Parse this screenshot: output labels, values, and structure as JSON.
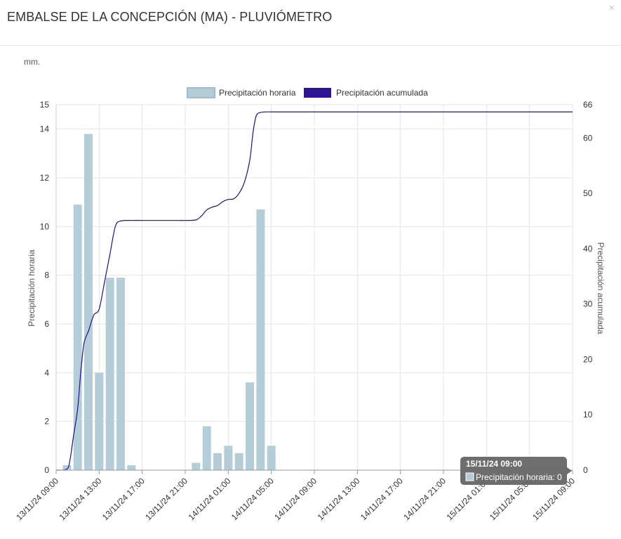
{
  "header": {
    "title": "EMBALSE DE LA CONCEPCIÓN (MA) - PLUVIÓMETRO",
    "close_label": "×"
  },
  "unit_label": "mm.",
  "chart_data": {
    "type": "bar",
    "x_ticks": [
      "13/11/24 09:00",
      "13/11/24 13:00",
      "13/11/24 17:00",
      "13/11/24 21:00",
      "14/11/24 01:00",
      "14/11/24 05:00",
      "14/11/24 09:00",
      "14/11/24 13:00",
      "14/11/24 17:00",
      "14/11/24 21:00",
      "15/11/24 01:00",
      "15/11/24 05:00",
      "15/11/24 09:00"
    ],
    "y_left_ticks": [
      0,
      2,
      4,
      6,
      8,
      10,
      12,
      14,
      15
    ],
    "y_right_ticks": [
      0,
      10,
      20,
      30,
      40,
      50,
      60,
      66
    ],
    "ylim_left": [
      0,
      15
    ],
    "ylim_right": [
      0,
      66
    ],
    "ylabel_left": "Precipitación horaria",
    "ylabel_right": "Precipitación acumulada",
    "grid": true,
    "legend_position": "top-center",
    "series": [
      {
        "name": "Precipitación horaria",
        "type": "bar",
        "axis": "left",
        "color": "#b4cdd9",
        "hours": [
          1,
          2,
          3,
          4,
          5,
          6,
          7,
          8,
          13,
          14,
          15,
          16,
          17,
          18,
          19,
          20,
          21
        ],
        "values": [
          0.2,
          10.9,
          13.8,
          4.0,
          7.9,
          7.9,
          0.2,
          0.0,
          0.3,
          1.8,
          0.7,
          1.0,
          0.7,
          3.6,
          10.7,
          1.0,
          0.0
        ]
      },
      {
        "name": "Precipitación acumulada",
        "type": "line",
        "axis": "right",
        "color": "#1f1187",
        "x_hours": [
          0,
          1,
          1.3,
          1.6,
          2,
          2.3,
          2.6,
          3,
          3.5,
          4,
          4.5,
          5,
          5.5,
          6,
          7,
          8,
          9,
          10,
          11,
          12,
          13,
          13.5,
          14,
          14.5,
          15,
          15.5,
          16,
          16.5,
          17,
          17.5,
          18,
          18.3,
          18.6,
          19,
          19.5,
          20,
          21,
          24,
          48
        ],
        "values": [
          0,
          0.2,
          2,
          6,
          11.1,
          18,
          23,
          25.1,
          28,
          29.1,
          34,
          39,
          44,
          45,
          45.1,
          45.1,
          45.1,
          45.1,
          45.1,
          45.1,
          45.2,
          45.9,
          47,
          47.5,
          47.8,
          48.5,
          48.9,
          49,
          50,
          52,
          56,
          61,
          64,
          64.6,
          64.7,
          64.7,
          64.7,
          64.7,
          64.7
        ]
      }
    ],
    "tooltip": {
      "title": "15/11/24 09:00",
      "body": "Precipitación horaria: 0"
    }
  }
}
